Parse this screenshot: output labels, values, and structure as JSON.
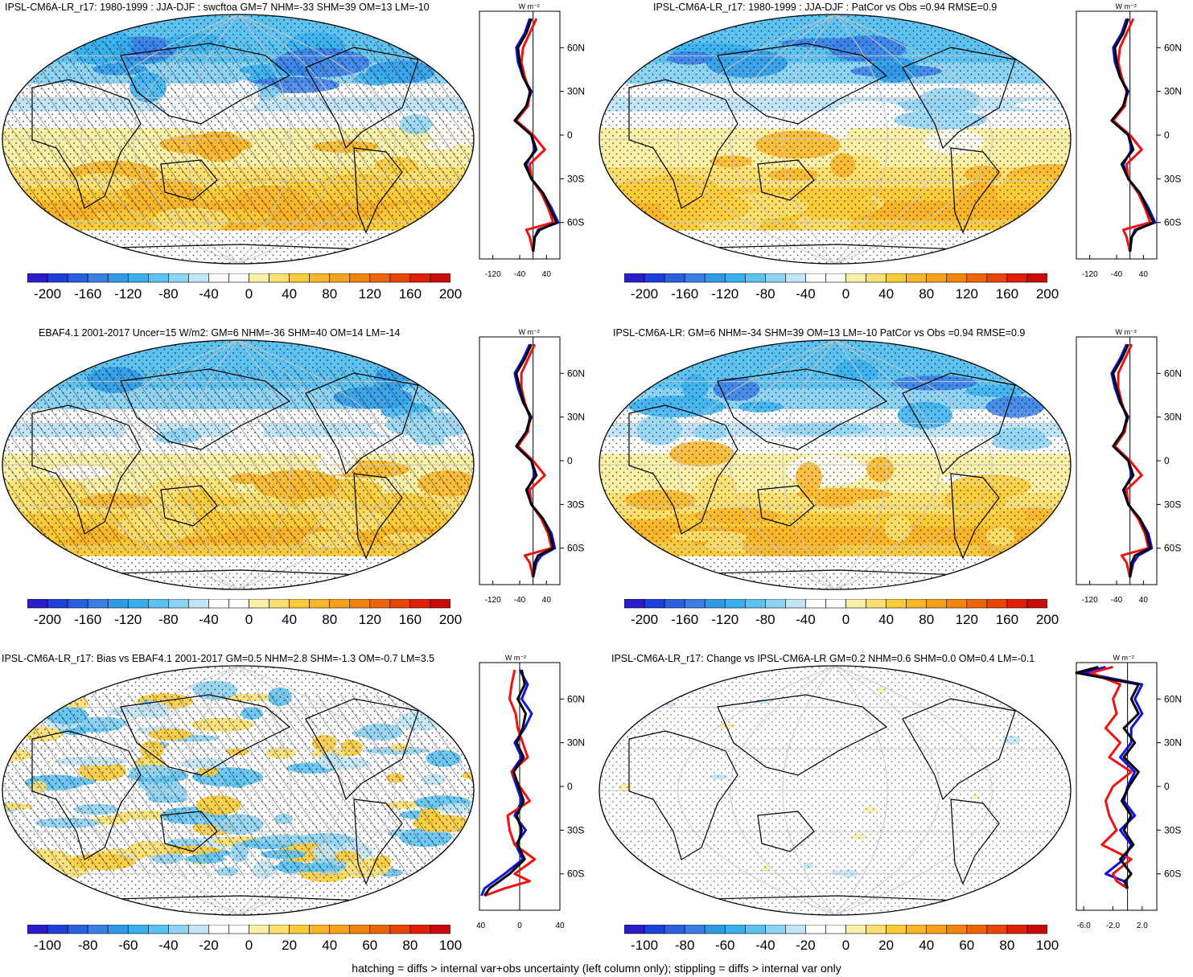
{
  "footer": "hatching = diffs > internal var+obs uncertainty (left column only); stippling = diffs > internal var only",
  "unit_label": "W m⁻²",
  "lat_labels": [
    "60N",
    "30N",
    "0",
    "30S",
    "60S"
  ],
  "lat_values": [
    60,
    30,
    0,
    -30,
    -60
  ],
  "colors": {
    "model_line": "#000000",
    "line_blue": "#1010dd",
    "line_red": "#ee1111",
    "scale": [
      "#2a1cc8",
      "#1f3fdb",
      "#2a5fe0",
      "#3b7fe6",
      "#2f9be8",
      "#38b0ee",
      "#5ec2f0",
      "#8fd3f3",
      "#c2e6f7",
      "#ffffff",
      "#ffffff",
      "#fbf0a8",
      "#fde071",
      "#fbcb3a",
      "#f9b52a",
      "#f7a01d",
      "#f3830f",
      "#ee6408",
      "#e84405",
      "#e01f05",
      "#c80a0a"
    ]
  },
  "chart_data": [
    {
      "type": "heatmap",
      "panel": "top-left",
      "title": "IPSL-CM6A-LR_r17: 1980-1999 : JJA-DJF : swcftoa GM=7 NHM=-33 SHM=39 OM=13 LM=-10",
      "colorbar_ticks": [
        "-200",
        "-160",
        "-120",
        "-80",
        "-40",
        "0",
        "40",
        "80",
        "120",
        "160",
        "200"
      ],
      "zonal_xticks": [
        "-120",
        "-40",
        "40"
      ],
      "zonal_xlim": [
        -160,
        80
      ],
      "hatching": true,
      "zonal_mean": {
        "lat": [
          80,
          70,
          60,
          50,
          40,
          30,
          20,
          10,
          0,
          -10,
          -20,
          -30,
          -40,
          -50,
          -60,
          -65,
          -70,
          -80
        ],
        "model": [
          -5,
          -20,
          -45,
          -40,
          -30,
          -8,
          -20,
          -55,
          -5,
          10,
          -25,
          -5,
          30,
          50,
          70,
          20,
          5,
          0
        ],
        "obs_blue": [
          -10,
          -25,
          -50,
          -45,
          -30,
          -5,
          -20,
          -50,
          -5,
          5,
          -20,
          -5,
          30,
          55,
          75,
          15,
          5,
          0
        ],
        "obs_red": [
          10,
          -10,
          -30,
          -35,
          -25,
          -10,
          -15,
          -50,
          0,
          35,
          -10,
          -5,
          25,
          45,
          60,
          -20,
          -10,
          0
        ]
      }
    },
    {
      "type": "heatmap",
      "panel": "top-right",
      "title": "IPSL-CM6A-LR_r17: 1980-1999 : JJA-DJF : PatCor vs Obs =0.94 RMSE=0.9",
      "colorbar_ticks": [
        "-200",
        "-160",
        "-120",
        "-80",
        "-40",
        "0",
        "40",
        "80",
        "120",
        "160",
        "200"
      ],
      "zonal_xticks": [
        "-120",
        "-40",
        "40"
      ],
      "zonal_xlim": [
        -160,
        80
      ],
      "hatching": false,
      "zonal_mean": {
        "lat": [
          80,
          70,
          60,
          50,
          40,
          30,
          20,
          10,
          0,
          -10,
          -20,
          -30,
          -40,
          -50,
          -60,
          -65,
          -70,
          -80
        ],
        "model": [
          -5,
          -20,
          -45,
          -40,
          -30,
          -8,
          -20,
          -55,
          -5,
          10,
          -25,
          -5,
          30,
          50,
          70,
          20,
          5,
          0
        ],
        "obs_blue": [
          -10,
          -25,
          -50,
          -45,
          -30,
          -5,
          -20,
          -50,
          -5,
          5,
          -20,
          -5,
          30,
          55,
          75,
          15,
          5,
          0
        ],
        "obs_red": [
          10,
          -10,
          -30,
          -35,
          -25,
          -10,
          -15,
          -50,
          0,
          35,
          -10,
          -5,
          25,
          45,
          60,
          -20,
          -10,
          0
        ]
      }
    },
    {
      "type": "heatmap",
      "panel": "middle-left",
      "title": "EBAF4.1 2001-2017 Uncer=15 W/m2: GM=6 NHM=-36 SHM=40 OM=14 LM=-14",
      "colorbar_ticks": [
        "-200",
        "-160",
        "-120",
        "-80",
        "-40",
        "0",
        "40",
        "80",
        "120",
        "160",
        "200"
      ],
      "zonal_xticks": [
        "-120",
        "-40",
        "40"
      ],
      "zonal_xlim": [
        -160,
        80
      ],
      "hatching": true,
      "zonal_mean": {
        "lat": [
          80,
          70,
          60,
          50,
          40,
          30,
          20,
          10,
          0,
          -10,
          -20,
          -30,
          -40,
          -50,
          -60,
          -65,
          -70,
          -80
        ],
        "model": [
          -5,
          -25,
          -50,
          -40,
          -28,
          -8,
          -20,
          -50,
          -5,
          10,
          -20,
          -5,
          30,
          50,
          60,
          15,
          5,
          0
        ],
        "obs_blue": [
          -10,
          -30,
          -55,
          -45,
          -30,
          -5,
          -20,
          -45,
          -5,
          5,
          -18,
          -5,
          30,
          55,
          65,
          25,
          10,
          0
        ],
        "obs_red": [
          5,
          -15,
          -35,
          -35,
          -25,
          -10,
          -15,
          -45,
          0,
          35,
          -10,
          -5,
          25,
          45,
          55,
          -25,
          -10,
          0
        ]
      }
    },
    {
      "type": "heatmap",
      "panel": "middle-right",
      "title": "IPSL-CM6A-LR: GM=6 NHM=-34 SHM=39 OM=13 LM=-10 PatCor vs Obs =0.94 RMSE=0.9",
      "colorbar_ticks": [
        "-200",
        "-160",
        "-120",
        "-80",
        "-40",
        "0",
        "40",
        "80",
        "120",
        "160",
        "200"
      ],
      "zonal_xticks": [
        "-120",
        "-40",
        "40"
      ],
      "zonal_xlim": [
        -160,
        80
      ],
      "hatching": false,
      "zonal_mean": {
        "lat": [
          80,
          70,
          60,
          50,
          40,
          30,
          20,
          10,
          0,
          -10,
          -20,
          -30,
          -40,
          -50,
          -60,
          -65,
          -70,
          -80
        ],
        "model": [
          -5,
          -25,
          -50,
          -40,
          -28,
          -8,
          -20,
          -50,
          -5,
          10,
          -20,
          -5,
          30,
          50,
          60,
          15,
          5,
          0
        ],
        "obs_blue": [
          -10,
          -30,
          -55,
          -45,
          -30,
          -5,
          -20,
          -45,
          -5,
          5,
          -18,
          -5,
          30,
          55,
          65,
          25,
          10,
          0
        ],
        "obs_red": [
          5,
          -15,
          -35,
          -35,
          -25,
          -10,
          -15,
          -45,
          0,
          35,
          -10,
          -5,
          25,
          45,
          55,
          -25,
          -10,
          0
        ]
      }
    },
    {
      "type": "heatmap",
      "panel": "bottom-left",
      "title": "IPSL-CM6A-LR_r17: Bias vs EBAF4.1 2001-2017 GM=0.5 NHM=2.8 SHM=-1.3 OM=-0.7 LM=3.5",
      "colorbar_ticks": [
        "-100",
        "-80",
        "-60",
        "-40",
        "-20",
        "0",
        "20",
        "40",
        "60",
        "80",
        "100"
      ],
      "zonal_xticks": [
        "-40",
        "0",
        "40"
      ],
      "zonal_xlim": [
        -40,
        40
      ],
      "hatching": true,
      "zonal_mean": {
        "lat": [
          80,
          70,
          60,
          50,
          40,
          30,
          20,
          10,
          0,
          -10,
          -20,
          -30,
          -40,
          -50,
          -60,
          -65,
          -70,
          -75
        ],
        "model": [
          2,
          5,
          -2,
          6,
          3,
          -3,
          4,
          -6,
          -1,
          4,
          -3,
          2,
          -2,
          5,
          -10,
          -20,
          -30,
          -35
        ],
        "obs_blue": [
          0,
          8,
          2,
          12,
          5,
          -5,
          2,
          -8,
          -3,
          2,
          -5,
          6,
          -4,
          3,
          -15,
          -25,
          -35,
          -38
        ],
        "obs_red": [
          -5,
          -8,
          -10,
          -4,
          -2,
          3,
          8,
          -8,
          0,
          10,
          -12,
          -10,
          -5,
          15,
          -5,
          10,
          -15,
          -35
        ]
      }
    },
    {
      "type": "heatmap",
      "panel": "bottom-right",
      "title": "IPSL-CM6A-LR_r17: Change vs IPSL-CM6A-LR GM=0.2 NHM=0.6 SHM=0.0 OM=0.4 LM=-0.1",
      "colorbar_ticks": [
        "-100",
        "-80",
        "-60",
        "-40",
        "-20",
        "0",
        "20",
        "40",
        "60",
        "80",
        "100"
      ],
      "zonal_xticks": [
        "-6.0",
        "-2.0",
        "2.0"
      ],
      "zonal_xlim": [
        -7,
        4
      ],
      "hatching": false,
      "zonal_mean": {
        "lat": [
          82,
          78,
          70,
          60,
          50,
          40,
          30,
          20,
          10,
          0,
          -10,
          -20,
          -30,
          -40,
          -50,
          -60,
          -65,
          -70
        ],
        "model": [
          -4,
          -7,
          1.5,
          0.5,
          1.5,
          -0.5,
          1.0,
          -0.5,
          1.5,
          0.2,
          -0.8,
          0.5,
          -0.5,
          0.8,
          -1.0,
          0.5,
          -0.3,
          0
        ],
        "obs_blue": [
          -3,
          -6,
          2.0,
          1.0,
          2.0,
          0.5,
          0.5,
          -1.0,
          1.0,
          0.0,
          -0.5,
          1.0,
          -1.0,
          0.5,
          -0.5,
          -3.0,
          -0.5,
          0
        ],
        "obs_red": [
          -2,
          -5,
          -1.0,
          -2.0,
          -1.5,
          -3.0,
          -1.0,
          -2.5,
          0.5,
          -2.0,
          -3.0,
          -2.5,
          -1.5,
          -3.5,
          0.5,
          -2.0,
          -1.5,
          0
        ]
      }
    }
  ]
}
